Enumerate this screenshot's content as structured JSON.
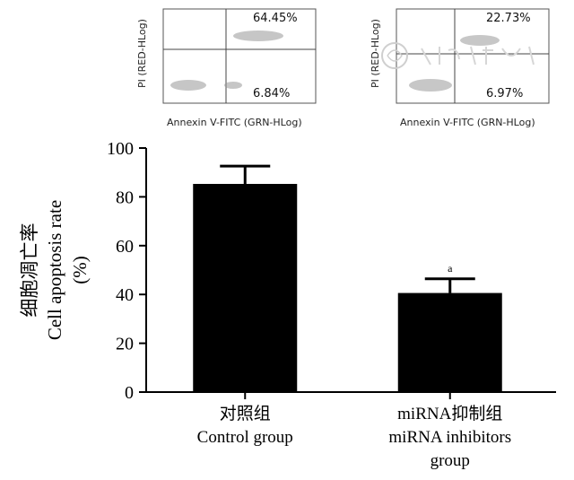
{
  "flow_panels": [
    {
      "x_axis_label": "Annexin V-FITC (GRN-HLog)",
      "y_axis_label": "PI (RED-HLog)",
      "upper_right_pct": "64.45%",
      "lower_right_pct": "6.84%"
    },
    {
      "x_axis_label": "Annexin V-FITC (GRN-HLog)",
      "y_axis_label": "PI (RED-HLog)",
      "upper_right_pct": "22.73%",
      "lower_right_pct": "6.97%"
    }
  ],
  "chart_data": {
    "type": "bar",
    "categories": [
      "对照组\nControl group",
      "miRNA抑制组\nmiRNA inhibitors\ngroup"
    ],
    "values": [
      85.3,
      40.6
    ],
    "errors": [
      7.3,
      5.8
    ],
    "annotations": [
      "",
      "a"
    ],
    "ylabel": "细胞凋亡率\nCell apoptosis rate\n(%)",
    "ylim": [
      0,
      100
    ],
    "yticks": [
      0,
      20,
      40,
      60,
      80,
      100
    ],
    "bar_color": "#000000",
    "grid": false
  }
}
